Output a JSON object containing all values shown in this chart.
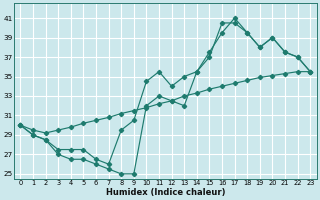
{
  "xlabel": "Humidex (Indice chaleur)",
  "bg_color": "#cce8ec",
  "grid_color": "#ffffff",
  "line_color": "#1e7b6e",
  "xlim": [
    -0.5,
    23.5
  ],
  "ylim": [
    24.5,
    42.5
  ],
  "xticks": [
    0,
    1,
    2,
    3,
    4,
    5,
    6,
    7,
    8,
    9,
    10,
    11,
    12,
    13,
    14,
    15,
    16,
    17,
    18,
    19,
    20,
    21,
    22,
    23
  ],
  "yticks": [
    25,
    27,
    29,
    31,
    33,
    35,
    37,
    39,
    41
  ],
  "line_straight_x": [
    0,
    1,
    2,
    3,
    4,
    5,
    6,
    7,
    8,
    9,
    10,
    11,
    12,
    13,
    14,
    15,
    16,
    17,
    18,
    19,
    20,
    21,
    22,
    23
  ],
  "line_straight_y": [
    30.0,
    29.5,
    29.2,
    29.5,
    29.8,
    30.2,
    30.5,
    30.8,
    31.2,
    31.5,
    31.8,
    32.2,
    32.5,
    33.0,
    33.3,
    33.7,
    34.0,
    34.3,
    34.6,
    34.9,
    35.1,
    35.3,
    35.5,
    35.5
  ],
  "line_mid_x": [
    0,
    1,
    2,
    3,
    4,
    5,
    6,
    7,
    8,
    9,
    10,
    11,
    12,
    13,
    14,
    15,
    16,
    17,
    18,
    19,
    20,
    21,
    22,
    23
  ],
  "line_mid_y": [
    30.0,
    29.0,
    28.5,
    27.0,
    26.5,
    26.5,
    26.0,
    25.5,
    25.0,
    25.0,
    32.0,
    33.0,
    32.5,
    32.0,
    35.5,
    37.0,
    40.5,
    40.5,
    39.5,
    38.0,
    39.0,
    37.5,
    37.0,
    35.5
  ],
  "line_top_x": [
    0,
    1,
    2,
    3,
    4,
    5,
    6,
    7,
    8,
    9,
    10,
    11,
    12,
    13,
    14,
    15,
    16,
    17,
    18,
    19,
    20,
    21,
    22,
    23
  ],
  "line_top_y": [
    30.0,
    29.0,
    28.5,
    27.5,
    27.5,
    27.5,
    26.5,
    26.0,
    29.5,
    30.5,
    34.5,
    35.5,
    34.0,
    35.0,
    35.5,
    37.5,
    39.5,
    41.0,
    39.5,
    38.0,
    39.0,
    37.5,
    37.0,
    35.5
  ]
}
